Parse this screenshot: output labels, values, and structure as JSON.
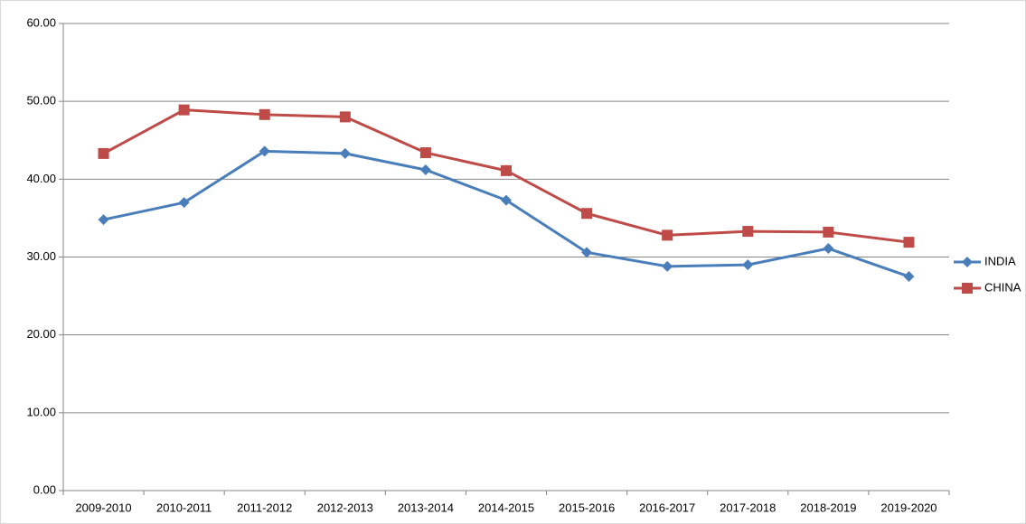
{
  "chart_data": {
    "type": "line",
    "categories": [
      "2009-2010",
      "2010-2011",
      "2011-2012",
      "2012-2013",
      "2013-2014",
      "2014-2015",
      "2015-2016",
      "2016-2017",
      "2017-2018",
      "2018-2019",
      "2019-2020"
    ],
    "series": [
      {
        "name": "INDIA",
        "color": "#4a7ebb",
        "marker": "diamond",
        "values": [
          34.8,
          37.0,
          43.6,
          43.3,
          41.2,
          37.3,
          30.6,
          28.8,
          29.0,
          31.1,
          27.5
        ]
      },
      {
        "name": "CHINA",
        "color": "#be4b48",
        "marker": "square",
        "values": [
          43.3,
          48.9,
          48.3,
          48.0,
          43.4,
          41.1,
          35.6,
          32.8,
          33.3,
          33.2,
          31.9
        ]
      }
    ],
    "ylim": [
      0,
      60
    ],
    "yticks": [
      {
        "value": 0,
        "label": "0.00"
      },
      {
        "value": 10,
        "label": "10.00"
      },
      {
        "value": 20,
        "label": "20.00"
      },
      {
        "value": 30,
        "label": "30.00"
      },
      {
        "value": 40,
        "label": "40.00"
      },
      {
        "value": 50,
        "label": "50.00"
      },
      {
        "value": 60,
        "label": "60.00"
      }
    ],
    "grid": true,
    "legend": "right"
  }
}
